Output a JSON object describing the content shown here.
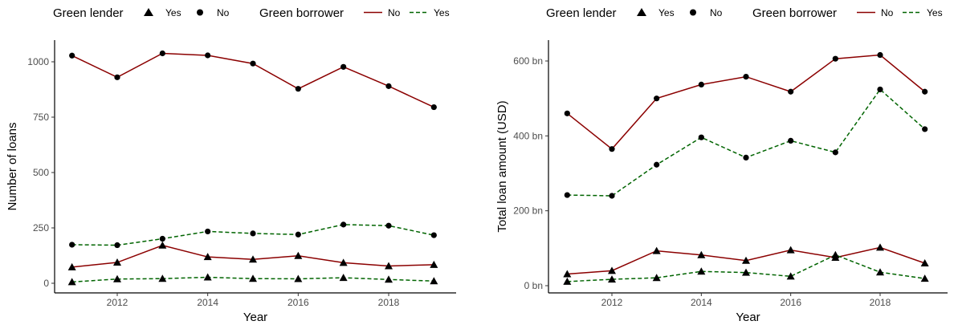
{
  "legend": {
    "lender_title": "Green lender",
    "lender_yes": "Yes",
    "lender_no": "No",
    "borrower_title": "Green borrower",
    "borrower_no": "No",
    "borrower_yes": "Yes"
  },
  "colors": {
    "borrower_no": "#8b0000",
    "borrower_yes": "#006400",
    "marker": "#000000"
  },
  "chart_data": [
    {
      "type": "line",
      "xlabel": "Year",
      "ylabel": "Number of loans",
      "xlim": [
        2011,
        2019
      ],
      "ylim": [
        0,
        1050
      ],
      "xticks": [
        2012,
        2014,
        2016,
        2018
      ],
      "yticks": [
        0,
        250,
        500,
        750,
        1000
      ],
      "ytick_labels": [
        "0",
        "250",
        "500",
        "750",
        "1000"
      ],
      "grid": false,
      "x": [
        2011,
        2012,
        2013,
        2014,
        2015,
        2016,
        2017,
        2018,
        2019
      ],
      "series": [
        {
          "lender": "No",
          "borrower": "No",
          "values": [
            1028,
            930,
            1038,
            1029,
            992,
            878,
            977,
            890,
            795
          ]
        },
        {
          "lender": "No",
          "borrower": "Yes",
          "values": [
            174,
            172,
            201,
            234,
            225,
            220,
            265,
            260,
            217
          ]
        },
        {
          "lender": "Yes",
          "borrower": "No",
          "values": [
            73,
            94,
            171,
            119,
            108,
            124,
            93,
            78,
            84
          ]
        },
        {
          "lender": "Yes",
          "borrower": "Yes",
          "values": [
            6,
            19,
            21,
            27,
            21,
            20,
            25,
            17,
            10
          ]
        }
      ]
    },
    {
      "type": "line",
      "xlabel": "Year",
      "ylabel": "Total loan amount (USD)",
      "xlim": [
        2011,
        2019
      ],
      "ylim": [
        0,
        640
      ],
      "xticks": [
        2012,
        2014,
        2016,
        2018
      ],
      "yticks": [
        0,
        200,
        400,
        600
      ],
      "ytick_labels": [
        "0 bn",
        "200 bn",
        "400 bn",
        "600 bn"
      ],
      "grid": false,
      "x": [
        2011,
        2012,
        2013,
        2014,
        2015,
        2016,
        2017,
        2018,
        2019
      ],
      "series": [
        {
          "lender": "No",
          "borrower": "No",
          "values": [
            460,
            365,
            500,
            537,
            558,
            518,
            606,
            616,
            518
          ]
        },
        {
          "lender": "No",
          "borrower": "Yes",
          "values": [
            242,
            240,
            323,
            396,
            342,
            387,
            356,
            524,
            418
          ]
        },
        {
          "lender": "Yes",
          "borrower": "No",
          "values": [
            31,
            40,
            93,
            82,
            67,
            95,
            75,
            102,
            60
          ]
        },
        {
          "lender": "Yes",
          "borrower": "Yes",
          "values": [
            11,
            17,
            21,
            38,
            35,
            25,
            82,
            36,
            19
          ]
        }
      ]
    }
  ]
}
